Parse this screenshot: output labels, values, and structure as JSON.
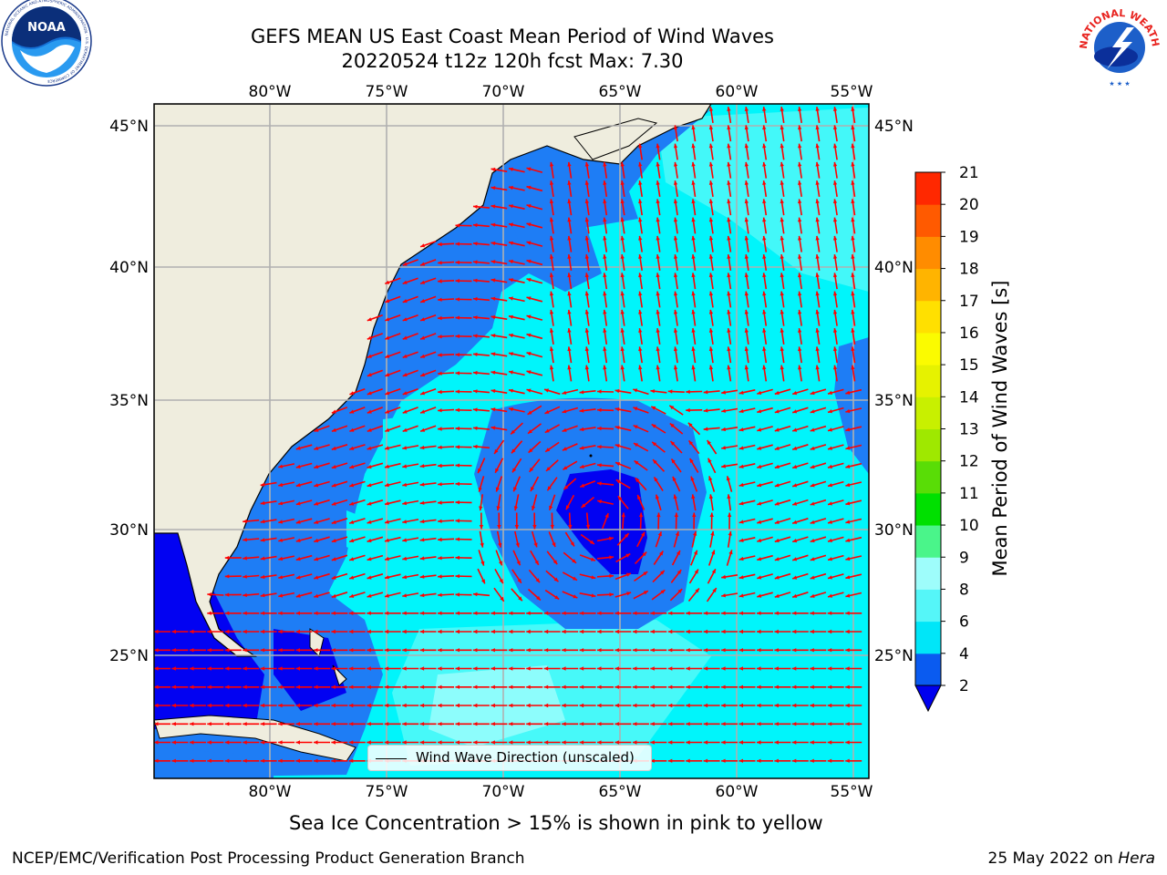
{
  "header": {
    "title_line1": "GEFS MEAN US East Coast Mean Period of Wind Waves",
    "title_line2": "20220524 t12z 120h fcst   Max: 7.30"
  },
  "logos": {
    "left": {
      "name": "noaa-logo",
      "text": "NOAA",
      "ring_text": "NATIONAL OCEANIC AND ATMOSPHERIC ADMINISTRATION · U.S. DEPARTMENT OF COMMERCE"
    },
    "right": {
      "name": "nws-logo",
      "ring_text": "NATIONAL WEATHER SERVICE"
    }
  },
  "map": {
    "lon_ticks": [
      "80°W",
      "75°W",
      "70°W",
      "65°W",
      "60°W",
      "55°W"
    ],
    "lat_ticks": [
      "45°N",
      "40°N",
      "35°N",
      "30°N",
      "25°N"
    ],
    "lon_range": [
      -85,
      -54.5
    ],
    "lat_range": [
      20.5,
      46
    ],
    "gridlines": true,
    "colors": {
      "land": "#efedde",
      "ocean_2_4": "#1e7df5",
      "ocean_4_6": "#00f5fb",
      "ocean_6_8": "#5ff9f8",
      "ocean_8_9": "#9ffefc",
      "ocean_lt_2": "#0202f2",
      "arrows": "#ff0000",
      "grid": "#b0b0b0"
    },
    "legend": {
      "label": "Wind Wave Direction (unscaled)"
    }
  },
  "colorbar": {
    "label": "Mean Period of Wind Waves [s]",
    "ticks": [
      "2",
      "4",
      "6",
      "8",
      "9",
      "10",
      "11",
      "12",
      "13",
      "14",
      "15",
      "16",
      "17",
      "18",
      "19",
      "20",
      "21"
    ],
    "colors": [
      "#0a5bf0",
      "#00e6f8",
      "#55f6f8",
      "#9efdfb",
      "#4af58a",
      "#00e000",
      "#59dd06",
      "#9fe800",
      "#c8f000",
      "#e6f200",
      "#fbfb00",
      "#ffe000",
      "#ffb400",
      "#ff8c00",
      "#ff5a00",
      "#ff2800"
    ],
    "extend_color": "#0000ee"
  },
  "footer": {
    "note": "Sea Ice Concentration > 15% is shown in pink to yellow",
    "credit_left": "NCEP/EMC/Verification Post Processing Product Generation Branch",
    "date": "25 May 2022 on",
    "machine": "Hera"
  }
}
